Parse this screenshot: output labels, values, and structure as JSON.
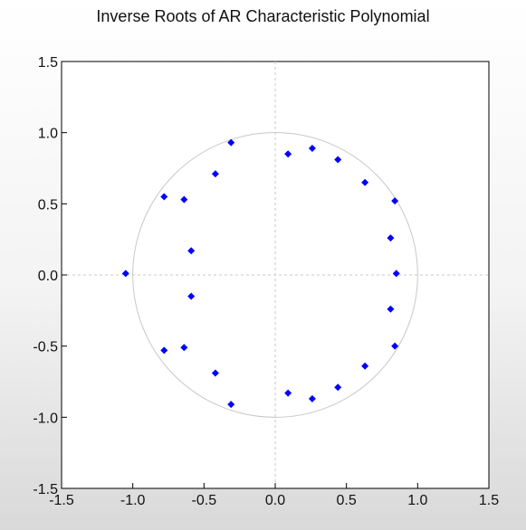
{
  "chart_data": {
    "type": "scatter",
    "title": "Inverse Roots of AR Characteristic Polynomial",
    "xlabel": "",
    "ylabel": "",
    "xlim": [
      -1.5,
      1.5
    ],
    "ylim": [
      -1.5,
      1.5
    ],
    "x_ticks": [
      "-1.5",
      "-1.0",
      "-0.5",
      "0.0",
      "0.5",
      "1.0",
      "1.5"
    ],
    "y_ticks": [
      "1.5",
      "1.0",
      "0.5",
      "0.0",
      "-0.5",
      "-1.0",
      "-1.5"
    ],
    "x_tick_values": [
      -1.5,
      -1.0,
      -0.5,
      0.0,
      0.5,
      1.0,
      1.5
    ],
    "y_tick_values": [
      1.5,
      1.0,
      0.5,
      0.0,
      -0.5,
      -1.0,
      -1.5
    ],
    "unit_circle": true,
    "grid": false,
    "reference_lines": "dashed lines at x=0 and y=0",
    "point_color": "#0000ff",
    "circle_color": "#c8c8c8",
    "reference_line_color": "#c8c8c8",
    "points": [
      {
        "x": -1.05,
        "y": 0.01
      },
      {
        "x": -0.78,
        "y": 0.55
      },
      {
        "x": -0.78,
        "y": -0.53
      },
      {
        "x": -0.64,
        "y": 0.53
      },
      {
        "x": -0.64,
        "y": -0.51
      },
      {
        "x": -0.59,
        "y": 0.17
      },
      {
        "x": -0.59,
        "y": -0.15
      },
      {
        "x": -0.42,
        "y": 0.71
      },
      {
        "x": -0.42,
        "y": -0.69
      },
      {
        "x": -0.31,
        "y": 0.93
      },
      {
        "x": -0.31,
        "y": -0.91
      },
      {
        "x": 0.09,
        "y": 0.85
      },
      {
        "x": 0.09,
        "y": -0.83
      },
      {
        "x": 0.26,
        "y": 0.89
      },
      {
        "x": 0.26,
        "y": -0.87
      },
      {
        "x": 0.44,
        "y": 0.81
      },
      {
        "x": 0.44,
        "y": -0.79
      },
      {
        "x": 0.63,
        "y": 0.65
      },
      {
        "x": 0.63,
        "y": -0.64
      },
      {
        "x": 0.81,
        "y": 0.26
      },
      {
        "x": 0.81,
        "y": -0.24
      },
      {
        "x": 0.84,
        "y": 0.52
      },
      {
        "x": 0.84,
        "y": -0.5
      },
      {
        "x": 0.85,
        "y": 0.01
      }
    ]
  }
}
